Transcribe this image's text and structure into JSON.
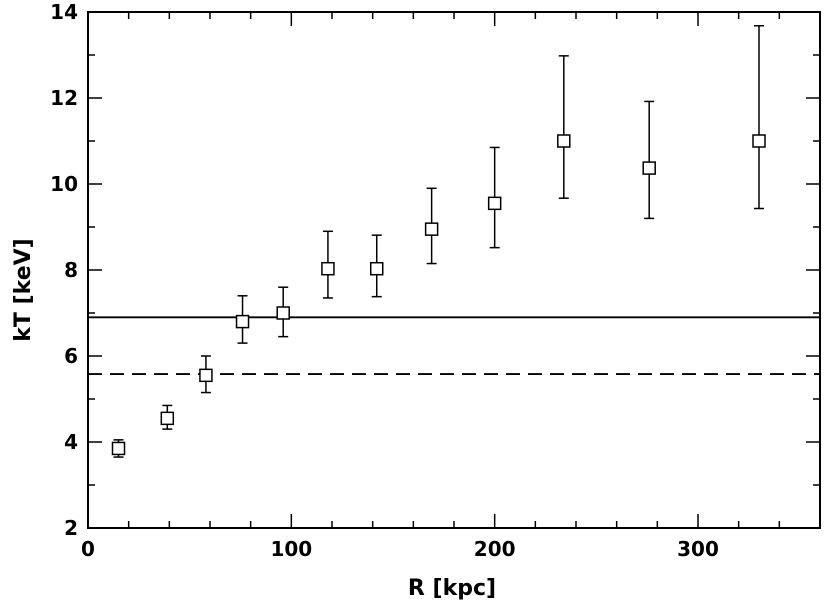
{
  "chart_data": {
    "type": "scatter",
    "xlabel": "R [kpc]",
    "ylabel": "kT [keV]",
    "xlim": [
      0,
      360
    ],
    "ylim": [
      2,
      14
    ],
    "x_ticks": [
      0,
      100,
      200,
      300
    ],
    "y_ticks": [
      2,
      4,
      6,
      8,
      10,
      12,
      14
    ],
    "x_tick_labels": [
      "0",
      "100",
      "200",
      "300"
    ],
    "y_tick_labels": [
      "2",
      "4",
      "6",
      "8",
      "10",
      "12",
      "14"
    ],
    "grid": false,
    "marker": "open-square",
    "points": [
      {
        "x": 15,
        "y": 3.85,
        "y_err_low": 0.2,
        "y_err_high": 0.2
      },
      {
        "x": 39,
        "y": 4.55,
        "y_err_low": 0.25,
        "y_err_high": 0.3
      },
      {
        "x": 58,
        "y": 5.55,
        "y_err_low": 0.4,
        "y_err_high": 0.45
      },
      {
        "x": 76,
        "y": 6.8,
        "y_err_low": 0.5,
        "y_err_high": 0.6
      },
      {
        "x": 96,
        "y": 7.0,
        "y_err_low": 0.55,
        "y_err_high": 0.6
      },
      {
        "x": 118,
        "y": 8.03,
        "y_err_low": 0.68,
        "y_err_high": 0.87
      },
      {
        "x": 142,
        "y": 8.03,
        "y_err_low": 0.65,
        "y_err_high": 0.78
      },
      {
        "x": 169,
        "y": 8.95,
        "y_err_low": 0.8,
        "y_err_high": 0.95
      },
      {
        "x": 200,
        "y": 9.55,
        "y_err_low": 1.03,
        "y_err_high": 1.3
      },
      {
        "x": 234,
        "y": 11.0,
        "y_err_low": 1.33,
        "y_err_high": 1.98
      },
      {
        "x": 276,
        "y": 10.37,
        "y_err_low": 1.17,
        "y_err_high": 1.55
      },
      {
        "x": 330,
        "y": 11.0,
        "y_err_low": 1.57,
        "y_err_high": 2.68
      }
    ],
    "hlines": [
      {
        "y": 6.9,
        "style": "solid"
      },
      {
        "y": 5.58,
        "style": "dashed"
      }
    ]
  }
}
